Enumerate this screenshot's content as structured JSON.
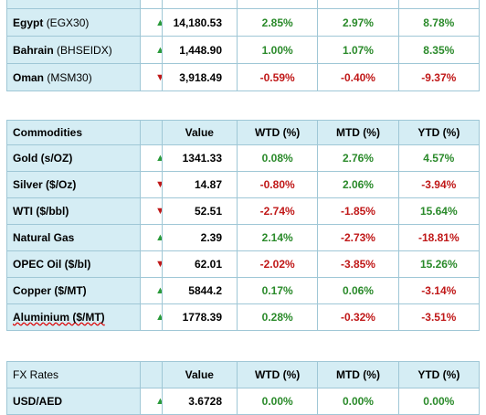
{
  "indices": {
    "rows": [
      {
        "name": "Egypt",
        "code": "(EGX30)",
        "dir": "up",
        "value": "14,180.53",
        "wtd": "2.85%",
        "mtd": "2.97%",
        "ytd": "8.78%",
        "wtd_sign": "pos",
        "mtd_sign": "pos",
        "ytd_sign": "pos"
      },
      {
        "name": "Bahrain",
        "code": "(BHSEIDX)",
        "dir": "up",
        "value": "1,448.90",
        "wtd": "1.00%",
        "mtd": "1.07%",
        "ytd": "8.35%",
        "wtd_sign": "pos",
        "mtd_sign": "pos",
        "ytd_sign": "pos"
      },
      {
        "name": "Oman",
        "code": "(MSM30)",
        "dir": "down",
        "value": "3,918.49",
        "wtd": "-0.59%",
        "mtd": "-0.40%",
        "ytd": "-9.37%",
        "wtd_sign": "neg",
        "mtd_sign": "neg",
        "ytd_sign": "neg"
      }
    ]
  },
  "commodities": {
    "headers": {
      "name": "Commodities",
      "value": "Value",
      "wtd": "WTD (%)",
      "mtd": "MTD (%)",
      "ytd": "YTD (%)"
    },
    "rows": [
      {
        "name": "Gold (s/OZ)",
        "dir": "up",
        "value": "1341.33",
        "wtd": "0.08%",
        "mtd": "2.76%",
        "ytd": "4.57%",
        "wtd_sign": "pos",
        "mtd_sign": "pos",
        "ytd_sign": "pos"
      },
      {
        "name": "Silver ($/Oz)",
        "dir": "down",
        "value": "14.87",
        "wtd": "-0.80%",
        "mtd": "2.06%",
        "ytd": "-3.94%",
        "wtd_sign": "neg",
        "mtd_sign": "pos",
        "ytd_sign": "neg"
      },
      {
        "name": "WTI ($/bbl)",
        "dir": "down",
        "value": "52.51",
        "wtd": "-2.74%",
        "mtd": "-1.85%",
        "ytd": "15.64%",
        "wtd_sign": "neg",
        "mtd_sign": "neg",
        "ytd_sign": "pos"
      },
      {
        "name": "Natural Gas",
        "dir": "up",
        "value": "2.39",
        "wtd": "2.14%",
        "mtd": "-2.73%",
        "ytd": "-18.81%",
        "wtd_sign": "pos",
        "mtd_sign": "neg",
        "ytd_sign": "neg"
      },
      {
        "name": "OPEC Oil ($/bl)",
        "dir": "down",
        "value": "62.01",
        "wtd": "-2.02%",
        "mtd": "-3.85%",
        "ytd": "15.26%",
        "wtd_sign": "neg",
        "mtd_sign": "neg",
        "ytd_sign": "pos"
      },
      {
        "name": "Copper ($/MT)",
        "dir": "up",
        "value": "5844.2",
        "wtd": "0.17%",
        "mtd": "0.06%",
        "ytd": "-3.14%",
        "wtd_sign": "pos",
        "mtd_sign": "pos",
        "ytd_sign": "neg"
      },
      {
        "name": "Aluminium ($/MT)",
        "dir": "up",
        "value": "1778.39",
        "wtd": "0.28%",
        "mtd": "-0.32%",
        "ytd": "-3.51%",
        "wtd_sign": "pos",
        "mtd_sign": "neg",
        "ytd_sign": "neg"
      }
    ]
  },
  "fx": {
    "headers": {
      "name": "FX Rates",
      "value": "Value",
      "wtd": "WTD (%)",
      "mtd": "MTD (%)",
      "ytd": "YTD (%)"
    },
    "rows": [
      {
        "name": "USD/AED",
        "dir": "up",
        "value": "3.6728",
        "wtd": "0.00%",
        "mtd": "0.00%",
        "ytd": "0.00%",
        "wtd_sign": "pos",
        "mtd_sign": "pos",
        "ytd_sign": "pos"
      }
    ]
  },
  "icons": {
    "up": "triangle-up-icon",
    "down": "triangle-down-icon"
  },
  "colors": {
    "header_bg": "#d5edf4",
    "border": "#9fc7d6",
    "positive": "#2a8a2a",
    "negative": "#c01818",
    "arrow_up": "#2a9a3a",
    "arrow_down": "#c01818"
  }
}
